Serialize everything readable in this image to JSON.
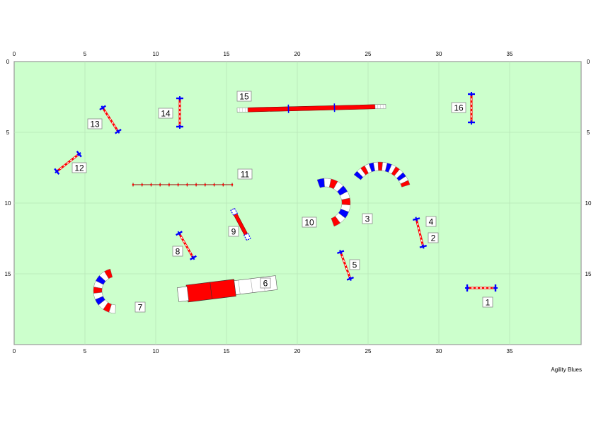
{
  "course": {
    "field_ft": {
      "width": 40,
      "height": 20
    },
    "x_ticks": [
      0,
      5,
      10,
      15,
      20,
      25,
      30,
      35
    ],
    "y_ticks": [
      0,
      5,
      10,
      15
    ],
    "colors": {
      "field": "#ccffcc",
      "grid": "#b8e6b8",
      "border": "#999999",
      "red": "#ff0000",
      "blue": "#0000ff",
      "white": "#ffffff",
      "dark_red": "#990000"
    },
    "obstacles": [
      {
        "number": "1",
        "type": "jump",
        "center": [
          33.0,
          16.0
        ],
        "angle": 0,
        "length": 2.0
      },
      {
        "number": "2",
        "type": "jump",
        "center": [
          28.65,
          12.1
        ],
        "angle": 76,
        "length": 2.0
      },
      {
        "number": "3",
        "type": "tunnel",
        "center": [
          25.8,
          9.35
        ],
        "radius": 1.95,
        "start_deg": 17,
        "end_deg": 143,
        "lobes": 15
      },
      {
        "number": "4",
        "type": "label_only",
        "center": [
          28.9,
          11.3
        ]
      },
      {
        "number": "5",
        "type": "jump",
        "center": [
          23.4,
          14.4
        ],
        "angle": 70,
        "length": 2.0
      },
      {
        "number": "6",
        "type": "chute",
        "center": [
          15.05,
          16.05
        ],
        "angle": -7,
        "length": 7.0,
        "barrel": 2.6
      },
      {
        "number": "7",
        "type": "tunnel",
        "center": [
          7.2,
          16.2
        ],
        "radius": 1.3,
        "start_deg": 105,
        "end_deg": 268,
        "lobes": 10
      },
      {
        "number": "8",
        "type": "jump",
        "center": [
          12.15,
          13.0
        ],
        "angle": 60,
        "length": 2.0
      },
      {
        "number": "9",
        "type": "teeter",
        "center": [
          16.0,
          11.5
        ],
        "angle": 62,
        "length": 2.4
      },
      {
        "number": "10",
        "type": "tunnel",
        "center": [
          22.0,
          10.0
        ],
        "radius": 1.45,
        "start_deg": -70,
        "end_deg": 110,
        "lobes": 11
      },
      {
        "number": "11",
        "type": "weave",
        "center": [
          11.9,
          8.7
        ],
        "angle": 0,
        "length": 7.0,
        "poles": 12
      },
      {
        "number": "12",
        "type": "jump",
        "center": [
          3.8,
          7.15
        ],
        "angle": -38,
        "length": 2.0
      },
      {
        "number": "13",
        "type": "jump",
        "center": [
          6.8,
          4.1
        ],
        "angle": 57,
        "length": 2.0
      },
      {
        "number": "14",
        "type": "jump",
        "center": [
          11.7,
          3.6
        ],
        "angle": 90,
        "length": 2.0
      },
      {
        "number": "15",
        "type": "dogwalk",
        "center": [
          21.0,
          3.3
        ],
        "angle": -1.4,
        "length": 10.5
      },
      {
        "number": "16",
        "type": "jump",
        "center": [
          32.3,
          3.3
        ],
        "angle": 90,
        "length": 2.0
      }
    ],
    "labels": [
      {
        "number": "1",
        "pos": [
          33.45,
          17.0
        ]
      },
      {
        "number": "2",
        "pos": [
          29.6,
          12.45
        ]
      },
      {
        "number": "3",
        "pos": [
          24.95,
          11.1
        ]
      },
      {
        "number": "4",
        "pos": [
          29.45,
          11.3
        ]
      },
      {
        "number": "5",
        "pos": [
          24.05,
          14.35
        ]
      },
      {
        "number": "6",
        "pos": [
          17.75,
          15.65
        ]
      },
      {
        "number": "7",
        "pos": [
          8.9,
          17.35
        ]
      },
      {
        "number": "8",
        "pos": [
          11.55,
          13.4
        ]
      },
      {
        "number": "9",
        "pos": [
          15.5,
          12.0
        ]
      },
      {
        "number": "10",
        "pos": [
          20.85,
          11.35
        ]
      },
      {
        "number": "11",
        "pos": [
          16.3,
          7.95
        ]
      },
      {
        "number": "12",
        "pos": [
          4.6,
          7.5
        ]
      },
      {
        "number": "13",
        "pos": [
          5.7,
          4.4
        ]
      },
      {
        "number": "14",
        "pos": [
          10.7,
          3.65
        ]
      },
      {
        "number": "15",
        "pos": [
          16.25,
          2.45
        ]
      },
      {
        "number": "16",
        "pos": [
          31.4,
          3.25
        ]
      }
    ]
  },
  "credit": "Agility Blues"
}
